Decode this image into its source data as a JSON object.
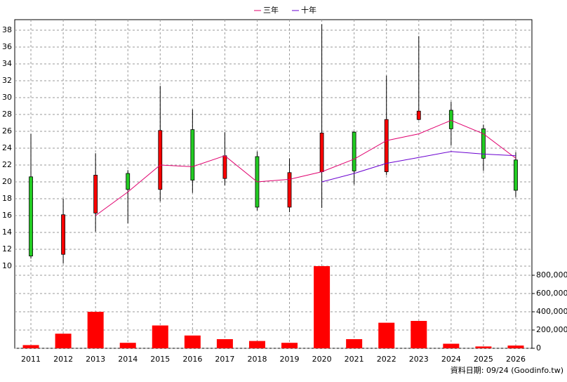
{
  "chart_data": [
    {
      "type": "candlestick",
      "legend": "top",
      "up_color": "#ff0000",
      "down_color": "#22cc22",
      "categories": [
        "2011",
        "2012",
        "2013",
        "2014",
        "2015",
        "2016",
        "2017",
        "2018",
        "2019",
        "2020",
        "2021",
        "2022",
        "2023",
        "2024",
        "2025",
        "2026"
      ],
      "open": [
        20.6,
        11.4,
        16.3,
        21.0,
        19.1,
        26.2,
        20.4,
        23.0,
        17.0,
        21.2,
        25.9,
        21.2,
        27.4,
        28.5,
        26.3,
        22.6
      ],
      "high": [
        25.7,
        18.0,
        23.4,
        21.4,
        31.4,
        28.6,
        25.9,
        23.6,
        22.8,
        38.7,
        26.0,
        32.6,
        37.3,
        29.5,
        26.8,
        23.5
      ],
      "low": [
        10.9,
        10.3,
        14.1,
        15.1,
        17.7,
        18.7,
        19.6,
        16.6,
        16.4,
        16.9,
        19.7,
        20.8,
        27.3,
        24.3,
        21.3,
        18.2
      ],
      "close": [
        11.2,
        16.1,
        20.8,
        19.1,
        26.1,
        20.2,
        23.1,
        17.0,
        21.1,
        25.8,
        21.3,
        27.4,
        28.4,
        26.3,
        22.8,
        19.0
      ],
      "series": [
        {
          "name": "三年",
          "color": "#e0006e",
          "values": [
            null,
            null,
            16.0,
            18.8,
            22.0,
            21.8,
            23.1,
            20.0,
            20.3,
            21.2,
            22.7,
            24.9,
            25.7,
            27.3,
            25.7,
            22.8
          ]
        },
        {
          "name": "十年",
          "color": "#6a00d0",
          "values": [
            null,
            null,
            null,
            null,
            null,
            null,
            null,
            null,
            null,
            20.0,
            21.0,
            22.2,
            22.9,
            23.6,
            23.3,
            23.1
          ]
        }
      ],
      "ylim": [
        10,
        39
      ],
      "yticks": [
        10,
        12,
        14,
        16,
        18,
        20,
        22,
        24,
        26,
        28,
        30,
        32,
        34,
        36,
        38
      ],
      "grid": true
    },
    {
      "type": "bar",
      "color": "#ff0000",
      "values": [
        35000,
        160000,
        400000,
        60000,
        250000,
        140000,
        100000,
        80000,
        60000,
        900000,
        100000,
        280000,
        300000,
        50000,
        20000,
        30000
      ],
      "ylim": [
        0,
        900000
      ],
      "yticks": [
        0,
        {
          "value": 200000,
          "label": "200,000"
        },
        {
          "value": 400000,
          "label": "400,000"
        },
        {
          "value": 600000,
          "label": "600,000"
        },
        {
          "value": 800000,
          "label": "800,000"
        }
      ],
      "grid": true
    }
  ],
  "footer": "資料日期: 09/24 (Goodinfo.tw)"
}
